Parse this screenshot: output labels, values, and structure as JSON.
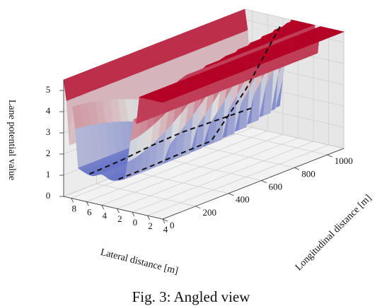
{
  "caption": "Fig. 3: Angled view",
  "chart_data": {
    "type": "surface3d",
    "title": "",
    "xlabel": "Lateral distance [m]",
    "ylabel": "Longitudinal distance [m]",
    "zlabel": "Lane potential value",
    "xticks": [
      "8",
      "6",
      "4",
      "2",
      "0",
      "2",
      "4"
    ],
    "yticks": [
      "0",
      "200",
      "400",
      "600",
      "800",
      "1000"
    ],
    "zticks": [
      "0",
      "1",
      "2",
      "3",
      "4",
      "5"
    ],
    "x_range": [
      -4,
      9
    ],
    "y_range": [
      0,
      1100
    ],
    "z_range": [
      0,
      5.5
    ],
    "plateau_value": 5.5,
    "lane_center_potential": 1.2,
    "lane_edge_potential": 2.3,
    "colormap": "coolwarm",
    "colors": {
      "low": "#3b4cc0",
      "mid": "#dddddd",
      "high": "#b40426"
    },
    "grid": true,
    "lane_boundaries": [
      {
        "lateral": [
          1.8,
          2.0,
          2.4,
          2.6,
          2.4,
          2.2
        ],
        "longitudinal": [
          0,
          200,
          400,
          600,
          800,
          1000
        ]
      },
      {
        "lateral": [
          5.6,
          5.8,
          6.2,
          6.4,
          6.2,
          6.0
        ],
        "longitudinal": [
          0,
          200,
          400,
          600,
          800,
          1000
        ]
      }
    ]
  }
}
